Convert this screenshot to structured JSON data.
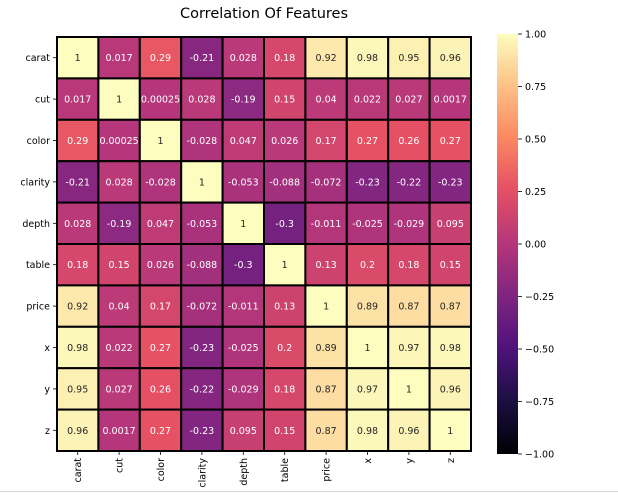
{
  "chart_data": {
    "type": "heatmap",
    "title": "Correlation Of Features",
    "xlabel": "",
    "ylabel": "",
    "x_labels": [
      "carat",
      "cut",
      "color",
      "clarity",
      "depth",
      "table",
      "price",
      "x",
      "y",
      "z"
    ],
    "y_labels": [
      "carat",
      "cut",
      "color",
      "clarity",
      "depth",
      "table",
      "price",
      "x",
      "y",
      "z"
    ],
    "matrix": [
      [
        1,
        0.017,
        0.29,
        -0.21,
        0.028,
        0.18,
        0.92,
        0.98,
        0.95,
        0.96
      ],
      [
        0.017,
        1,
        0.00025,
        0.028,
        -0.19,
        0.15,
        0.04,
        0.022,
        0.027,
        0.0017
      ],
      [
        0.29,
        0.00025,
        1,
        -0.028,
        0.047,
        0.026,
        0.17,
        0.27,
        0.26,
        0.27
      ],
      [
        -0.21,
        0.028,
        -0.028,
        1,
        -0.053,
        -0.088,
        -0.072,
        -0.23,
        -0.22,
        -0.23
      ],
      [
        0.028,
        -0.19,
        0.047,
        -0.053,
        1,
        -0.3,
        -0.011,
        -0.025,
        -0.029,
        0.095
      ],
      [
        0.18,
        0.15,
        0.026,
        -0.088,
        -0.3,
        1,
        0.13,
        0.2,
        0.18,
        0.15
      ],
      [
        0.92,
        0.04,
        0.17,
        -0.072,
        -0.011,
        0.13,
        1,
        0.89,
        0.87,
        0.87
      ],
      [
        0.98,
        0.022,
        0.27,
        -0.23,
        -0.025,
        0.2,
        0.89,
        1,
        0.97,
        0.98
      ],
      [
        0.95,
        0.027,
        0.26,
        -0.22,
        -0.029,
        0.18,
        0.87,
        0.97,
        1,
        0.96
      ],
      [
        0.96,
        0.0017,
        0.27,
        -0.23,
        0.095,
        0.15,
        0.87,
        0.98,
        0.96,
        1
      ]
    ],
    "cell_labels": [
      [
        "1",
        "0.017",
        "0.29",
        "-0.21",
        "0.028",
        "0.18",
        "0.92",
        "0.98",
        "0.95",
        "0.96"
      ],
      [
        "0.017",
        "1",
        "0.00025",
        "0.028",
        "-0.19",
        "0.15",
        "0.04",
        "0.022",
        "0.027",
        "0.0017"
      ],
      [
        "0.29",
        "0.00025",
        "1",
        "-0.028",
        "0.047",
        "0.026",
        "0.17",
        "0.27",
        "0.26",
        "0.27"
      ],
      [
        "-0.21",
        "0.028",
        "-0.028",
        "1",
        "-0.053",
        "-0.088",
        "-0.072",
        "-0.23",
        "-0.22",
        "-0.23"
      ],
      [
        "0.028",
        "-0.19",
        "0.047",
        "-0.053",
        "1",
        "-0.3",
        "-0.011",
        "-0.025",
        "-0.029",
        "0.095"
      ],
      [
        "0.18",
        "0.15",
        "0.026",
        "-0.088",
        "-0.3",
        "1",
        "0.13",
        "0.2",
        "0.18",
        "0.15"
      ],
      [
        "0.92",
        "0.04",
        "0.17",
        "-0.072",
        "-0.011",
        "0.13",
        "1",
        "0.89",
        "0.87",
        "0.87"
      ],
      [
        "0.98",
        "0.022",
        "0.27",
        "-0.23",
        "-0.025",
        "0.2",
        "0.89",
        "1",
        "0.97",
        "0.98"
      ],
      [
        "0.95",
        "0.027",
        "0.26",
        "-0.22",
        "-0.029",
        "0.18",
        "0.87",
        "0.97",
        "1",
        "0.96"
      ],
      [
        "0.96",
        "0.0017",
        "0.27",
        "-0.23",
        "0.095",
        "0.15",
        "0.87",
        "0.98",
        "0.96",
        "1"
      ]
    ],
    "colorbar": {
      "colormap": "magma",
      "range": [
        -1,
        1
      ],
      "ticks": [
        1,
        0.75,
        0.5,
        0.25,
        0,
        -0.25,
        -0.5,
        -0.75,
        -1
      ],
      "tick_labels": [
        "1.00",
        "0.75",
        "0.50",
        "0.25",
        "0.00",
        "−0.25",
        "−0.50",
        "−0.75",
        "−1.00"
      ]
    },
    "cell_border_color": "#000000",
    "grid": false
  }
}
